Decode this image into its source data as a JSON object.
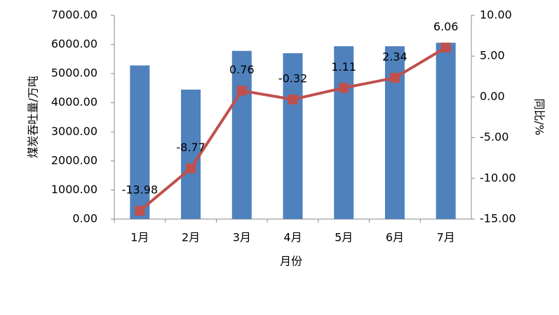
{
  "chart_data": {
    "type": "combo",
    "xlabel": "月份",
    "ylabel": "煤炭吞吐量/万吨",
    "y2label": "同比/%",
    "categories": [
      "1月",
      "2月",
      "3月",
      "4月",
      "5月",
      "6月",
      "7月"
    ],
    "series": [
      {
        "type": "bar",
        "color": "#4f81bd",
        "values": [
          5280,
          4450,
          5780,
          5700,
          5940,
          5940,
          6060
        ]
      },
      {
        "type": "line",
        "axis": "y2",
        "color": "#c0504d",
        "values": [
          -13.98,
          -8.77,
          0.76,
          -0.32,
          1.11,
          2.34,
          6.06
        ]
      }
    ],
    "ylim": [
      0,
      7000
    ],
    "yticks": [
      {
        "value": 0,
        "label": "0.00"
      },
      {
        "value": 1000,
        "label": "1000.00"
      },
      {
        "value": 2000,
        "label": "2000.00"
      },
      {
        "value": 3000,
        "label": "3000.00"
      },
      {
        "value": 4000,
        "label": "4000.00"
      },
      {
        "value": 5000,
        "label": "5000.00"
      },
      {
        "value": 6000,
        "label": "6000.00"
      },
      {
        "value": 7000,
        "label": "7000.00"
      }
    ],
    "y2lim": [
      -15,
      10
    ],
    "y2ticks": [
      {
        "value": -15,
        "label": "-15.00"
      },
      {
        "value": -10,
        "label": "-10.00"
      },
      {
        "value": -5,
        "label": "-5.00"
      },
      {
        "value": 0,
        "label": "0.00"
      },
      {
        "value": 5,
        "label": "5.00"
      },
      {
        "value": 10,
        "label": "10.00"
      }
    ],
    "grid": false
  }
}
